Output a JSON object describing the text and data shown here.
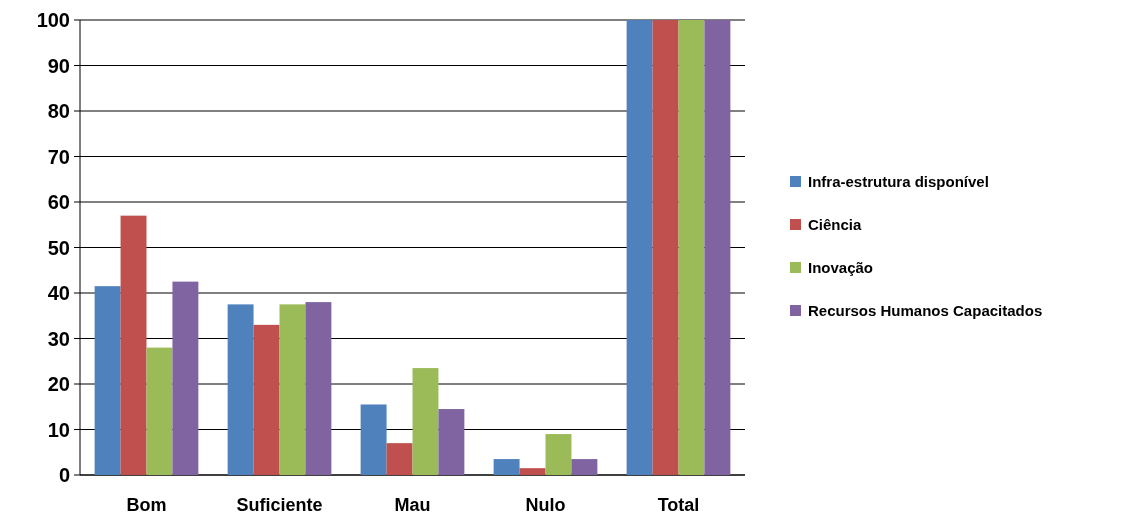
{
  "chart_data": {
    "type": "bar",
    "categories": [
      "Bom",
      "Suficiente",
      "Mau",
      "Nulo",
      "Total"
    ],
    "series": [
      {
        "name": "Infra-estrutura disponível",
        "color": "#4f81bd",
        "values": [
          41.5,
          37.5,
          15.5,
          3.5,
          100
        ]
      },
      {
        "name": "Ciência",
        "color": "#c0504d",
        "values": [
          57,
          33,
          7,
          1.5,
          100
        ]
      },
      {
        "name": "Inovação",
        "color": "#9bbb59",
        "values": [
          28,
          37.5,
          23.5,
          9,
          100
        ]
      },
      {
        "name": "Recursos Humanos Capacitados",
        "color": "#8064a2",
        "values": [
          42.5,
          38,
          14.5,
          3.5,
          100
        ]
      }
    ],
    "ylim": [
      0,
      100
    ],
    "yticks": [
      0,
      10,
      20,
      30,
      40,
      50,
      60,
      70,
      80,
      90,
      100
    ],
    "grid": "y",
    "legend": "right"
  }
}
